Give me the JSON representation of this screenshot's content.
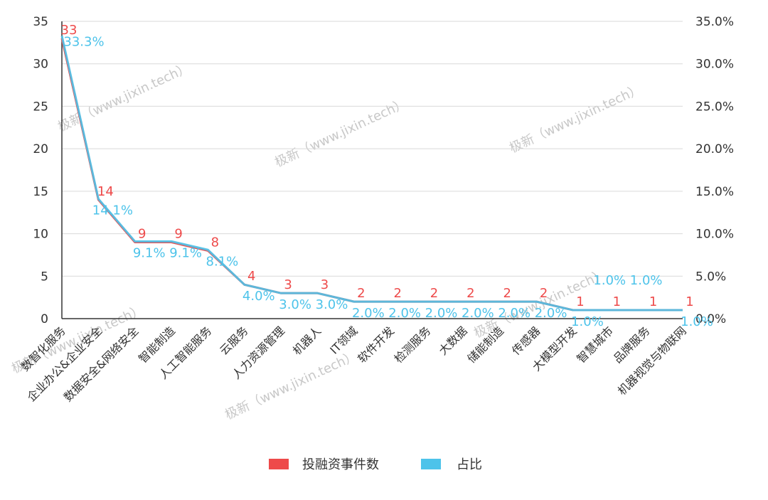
{
  "chart_data": {
    "type": "line",
    "categories": [
      "数智化服务",
      "企业办公&企业安全",
      "数据安全&网络安全",
      "智能制造",
      "人工智能服务",
      "云服务",
      "人力资源管理",
      "机器人",
      "IT领域",
      "软件开发",
      "检测服务",
      "大数据",
      "储能制造",
      "传感器",
      "大模型开发",
      "智慧城市",
      "品牌服务",
      "机器视觉与物联网"
    ],
    "series": [
      {
        "name": "投融资事件数",
        "color": "#ee4a4a",
        "axis": "left",
        "values": [
          33,
          14,
          9,
          9,
          8,
          4,
          3,
          3,
          2,
          2,
          2,
          2,
          2,
          2,
          1,
          1,
          1,
          1
        ],
        "labels": [
          "33",
          "14",
          "9",
          "9",
          "8",
          "4",
          "3",
          "3",
          "2",
          "2",
          "2",
          "2",
          "2",
          "2",
          "1",
          "1",
          "1",
          "1"
        ]
      },
      {
        "name": "占比",
        "color": "#4dc3ea",
        "axis": "right",
        "values": [
          33.3,
          14.1,
          9.1,
          9.1,
          8.1,
          4.0,
          3.0,
          3.0,
          2.0,
          2.0,
          2.0,
          2.0,
          2.0,
          2.0,
          1.0,
          1.0,
          1.0,
          1.0
        ],
        "labels": [
          "33.3%",
          "14.1%",
          "9.1%",
          "9.1%",
          "8.1%",
          "4.0%",
          "3.0%",
          "3.0%",
          "2.0%",
          "2.0%",
          "2.0%",
          "2.0%",
          "2.0%",
          "2.0%",
          "1.0%",
          "1.0%",
          "1.0%",
          "1.0%"
        ]
      }
    ],
    "y_left": {
      "min": 0,
      "max": 35,
      "ticks": [
        "0",
        "5",
        "10",
        "15",
        "20",
        "25",
        "30",
        "35"
      ]
    },
    "y_right": {
      "min": 0,
      "max": 35,
      "ticks": [
        "0.0%",
        "5.0%",
        "10.0%",
        "15.0%",
        "20.0%",
        "25.0%",
        "30.0%",
        "35.0%"
      ]
    },
    "grid": true,
    "legend_position": "bottom",
    "watermark": "极新（www.jixin.tech）"
  }
}
